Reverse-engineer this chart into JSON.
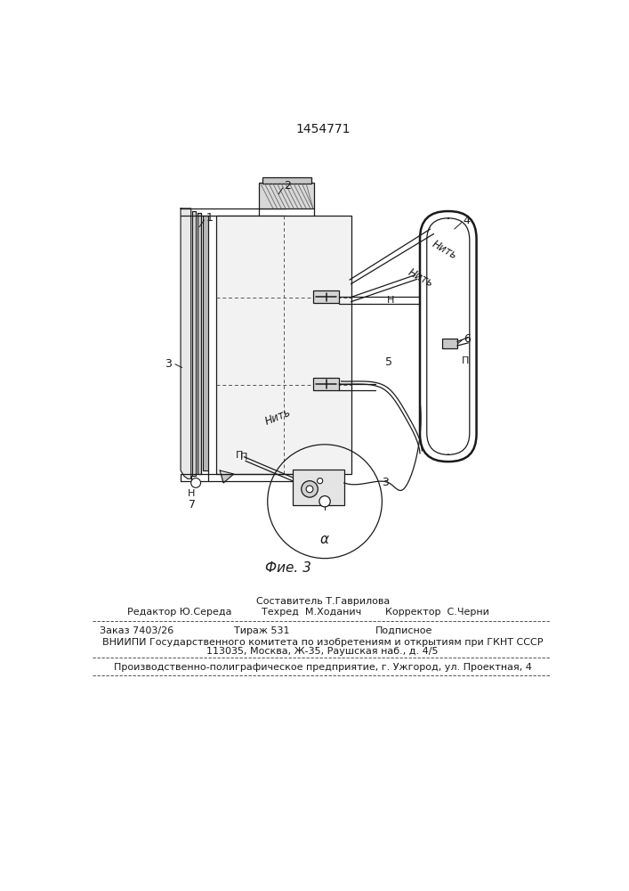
{
  "title": "1454771",
  "fig_label": "Фие. 3",
  "bg_color": "#ffffff",
  "line_color": "#1a1a1a",
  "footer_line1_left": "Редактор Ю.Середа",
  "footer_line1_mid": "Техред  М.Ходанич",
  "footer_line1_right": "Корректор  С.Черни",
  "footer_line0": "Составитель Т.Гаврилова",
  "footer_line2_left": "Заказ 7403/26",
  "footer_line2_mid": "Тираж 531",
  "footer_line2_right": "Подписное",
  "footer_line3": "ВНИИПИ Государственного комитета по изобретениям и открытиям при ГКНТ СССР",
  "footer_line4": "113035, Москва, Ж-35, Раушская наб., д. 4/5",
  "footer_line5": "Производственно-полиграфическое предприятие, г. Ужгород, ул. Проектная, 4"
}
